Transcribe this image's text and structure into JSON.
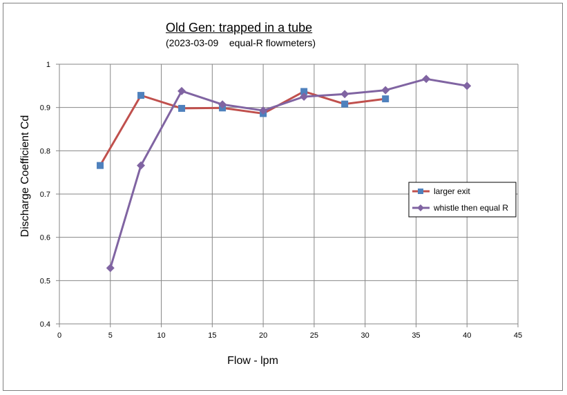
{
  "chart_data": {
    "type": "line",
    "title": "Old Gen: trapped in a tube",
    "subtitle": "(2023-03-09    equal-R flowmeters)",
    "xlabel": "Flow - lpm",
    "ylabel": "Discharge Coefficient  Cd",
    "xlim": [
      0,
      45
    ],
    "ylim": [
      0.4,
      1.0
    ],
    "xticks": [
      0,
      5,
      10,
      15,
      20,
      25,
      30,
      35,
      40,
      45
    ],
    "yticks": [
      0.4,
      0.5,
      0.6,
      0.7,
      0.8,
      0.9,
      1.0
    ],
    "xtick_labels": [
      "0",
      "5",
      "10",
      "15",
      "20",
      "25",
      "30",
      "35",
      "40",
      "45"
    ],
    "ytick_labels": [
      "0.4",
      "0.5",
      "0.6",
      "0.7",
      "0.8",
      "0.9",
      "1"
    ],
    "grid": true,
    "legend_position": "right",
    "series": [
      {
        "name": "larger exit",
        "color": "#c0504d",
        "marker_color": "#4f81bd",
        "marker": "square",
        "x": [
          4,
          8,
          12,
          16,
          20,
          24,
          28,
          32
        ],
        "y": [
          0.766,
          0.928,
          0.898,
          0.899,
          0.886,
          0.937,
          0.908,
          0.92
        ]
      },
      {
        "name": "whistle then equal R",
        "color": "#8064a2",
        "marker_color": "#8064a2",
        "marker": "diamond",
        "x": [
          5,
          8,
          12,
          16,
          20,
          24,
          28,
          32,
          36,
          40
        ],
        "y": [
          0.529,
          0.766,
          0.938,
          0.907,
          0.893,
          0.925,
          0.931,
          0.94,
          0.966,
          0.95
        ]
      }
    ]
  }
}
